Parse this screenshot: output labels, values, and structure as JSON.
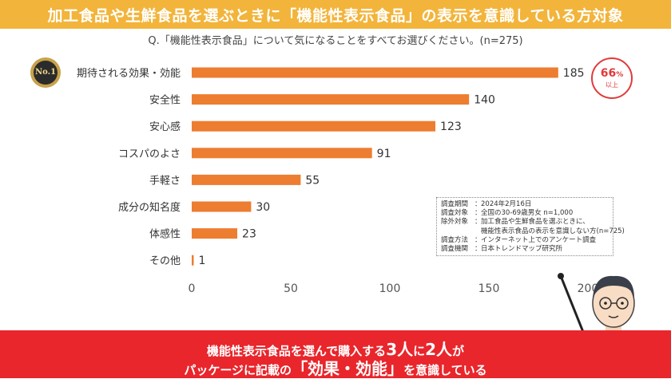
{
  "title": "加工食品や生鮮食品を選ぶときに「機能性表示食品」の表示を意識している方対象",
  "question": "Q.「機能性表示食品」について気になることをすべてお選びください。(n=275)",
  "medal_text": "No.1",
  "badge": {
    "pct": "66",
    "pct_unit": "%",
    "sub": "以上"
  },
  "survey_note": [
    {
      "k": "調査期間",
      "v": "2024年2月16日"
    },
    {
      "k": "調査対象",
      "v": "全国の30-69歳男女 n=1,000"
    },
    {
      "k": "除外対象",
      "v": "加工食品や生鮮食品を選ぶときに、"
    },
    {
      "k": "",
      "v": "機能性表示食品の表示を意識しない方(n=725)"
    },
    {
      "k": "調査方法",
      "v": "インターネット上でのアンケート調査"
    },
    {
      "k": "調査機関",
      "v": "日本トレンドマップ研究所"
    }
  ],
  "bottom": {
    "l1_a": "機能性表示食品を選んで購入する",
    "l1_b": "3人",
    "l1_c": "に",
    "l1_d": "2人",
    "l1_e": "が",
    "l2_a": "パッケージに記載の",
    "l2_b": "「効果・効能」",
    "l2_c": "を意識している"
  },
  "colors": {
    "bar": "#ed7d31",
    "title_bg": "#f2b43a",
    "bottom_bg": "#e8262c",
    "badge": "#e03a3a"
  },
  "chart_data": {
    "type": "bar",
    "orientation": "horizontal",
    "categories": [
      "期待される効果・効能",
      "安全性",
      "安心感",
      "コスパのよさ",
      "手軽さ",
      "成分の知名度",
      "体感性",
      "その他"
    ],
    "values": [
      185,
      140,
      123,
      91,
      55,
      30,
      23,
      1
    ],
    "xlim": [
      0,
      200
    ],
    "xticks": [
      0,
      50,
      100,
      150,
      200
    ],
    "grid": false
  }
}
